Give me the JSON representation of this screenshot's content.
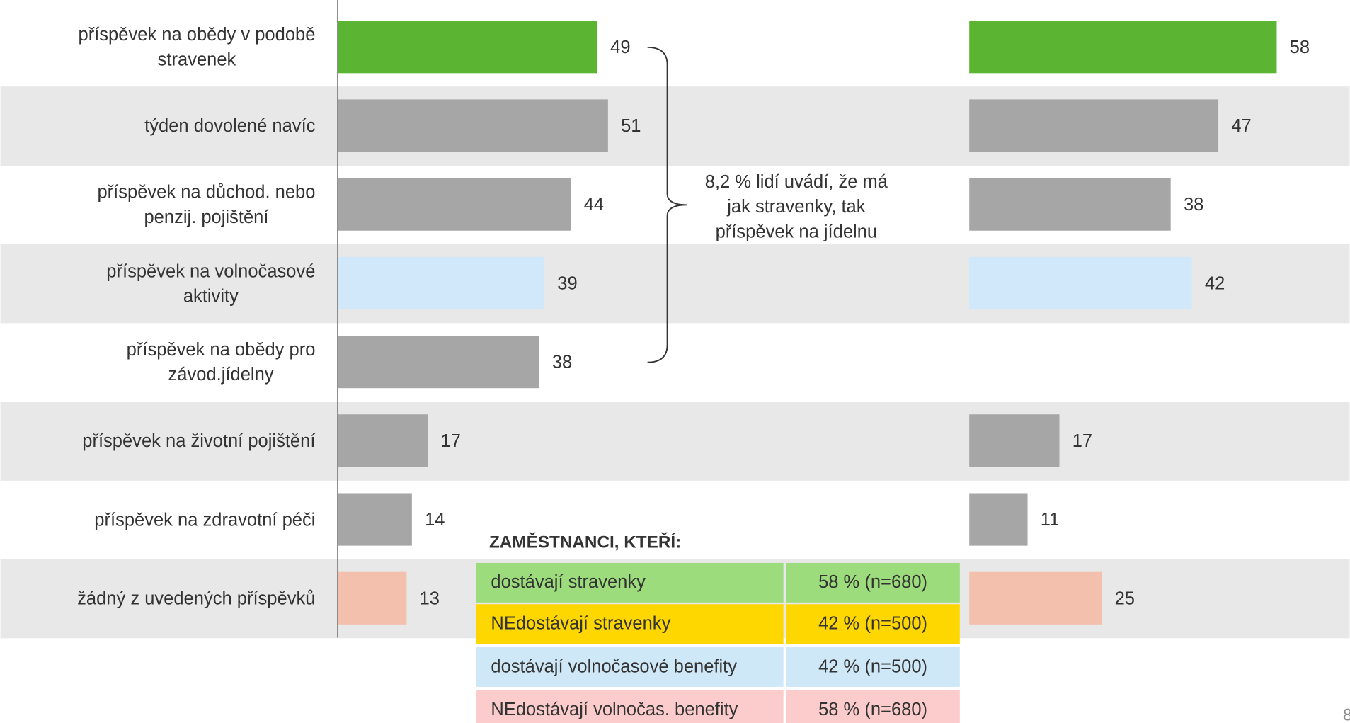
{
  "chart_data": {
    "type": "bar",
    "orientation": "horizontal",
    "categories": [
      "příspěvek na obědy v podobě\nstravenek",
      "týden dovolené navíc",
      "příspěvek na důchod. nebo\npenzij. pojištění",
      "příspěvek na volnočasové\naktivity",
      "příspěvek na obědy pro\nzávod.jídelny",
      "příspěvek na životní pojištění",
      "příspěvek na zdravotní péči",
      "žádný z uvedených příspěvků"
    ],
    "series": [
      {
        "values": [
          49,
          51,
          44,
          39,
          38,
          17,
          14,
          13
        ],
        "colors": [
          "#5cb532",
          "#a6a6a6",
          "#a6a6a6",
          "#d0e8fa",
          "#a6a6a6",
          "#a6a6a6",
          "#a6a6a6",
          "#f4c0ae"
        ]
      },
      {
        "values": [
          58,
          47,
          38,
          42,
          null,
          17,
          11,
          25
        ],
        "colors": [
          "#5cb532",
          "#a6a6a6",
          "#a6a6a6",
          "#d0e8fa",
          "#a6a6a6",
          "#a6a6a6",
          "#a6a6a6",
          "#f4c0ae"
        ]
      }
    ],
    "xlim": [
      0,
      100
    ],
    "annotation": "8,2 % lidí uvádí, že má\njak stravenky, tak\npříspěvek na jídelnu",
    "legend_table": {
      "title": "ZAMĚSTNANCI, KTEŘÍ:",
      "rows": [
        {
          "label": "dostávají stravenky",
          "value": "58 % (n=680)",
          "color": "#9cdc7c"
        },
        {
          "label": "NEdostávají stravenky",
          "value": "42 % (n=500)",
          "color": "#ffd700"
        },
        {
          "label": "dostávají volnočasové benefity",
          "value": "42 % (n=500)",
          "color": "#cfe8f8"
        },
        {
          "label": "NEdostávají volnočas. benefity",
          "value": "58 % (n=680)",
          "color": "#fccccc"
        }
      ]
    },
    "page_number": "8"
  }
}
